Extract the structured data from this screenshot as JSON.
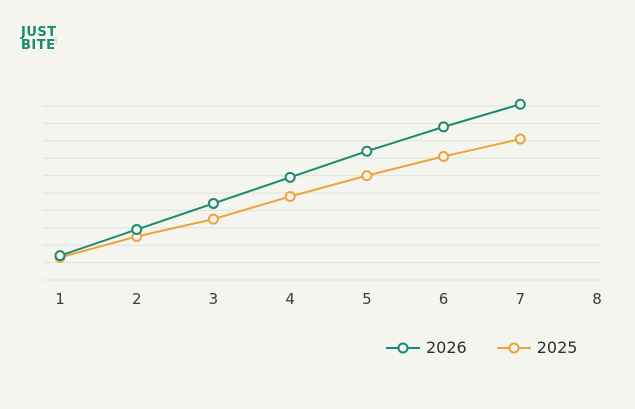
{
  "brand": {
    "line1": "JUST",
    "line2": "BITE",
    "color": "#1a8a6f",
    "icon": "hand-icon"
  },
  "chart_data": {
    "type": "line",
    "title": "",
    "xlabel": "",
    "ylabel": "",
    "x": [
      1,
      2,
      3,
      4,
      5,
      6,
      7
    ],
    "xticks": [
      "1",
      "2",
      "3",
      "4",
      "5",
      "6",
      "7",
      "8"
    ],
    "xlim": [
      1,
      8
    ],
    "ylim": [
      0,
      10
    ],
    "grid": "horizontal",
    "legend_position": "bottom-right",
    "series": [
      {
        "name": "2026",
        "color": "#1a8a73",
        "values": [
          1.4,
          2.9,
          4.4,
          5.9,
          7.4,
          8.8,
          10.1
        ]
      },
      {
        "name": "2025",
        "color": "#f0a23c",
        "values": [
          1.3,
          2.5,
          3.5,
          4.8,
          6.0,
          7.1,
          8.1
        ]
      }
    ]
  }
}
